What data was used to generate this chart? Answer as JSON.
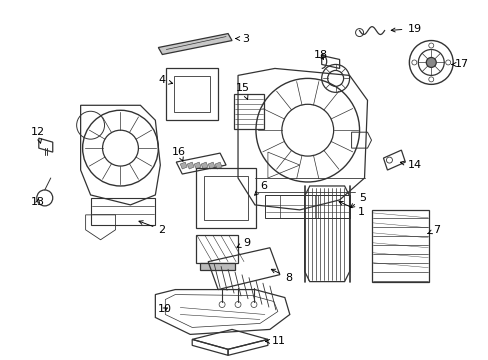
{
  "bg_color": "#ffffff",
  "line_color": "#333333",
  "fig_width": 4.89,
  "fig_height": 3.6,
  "dpi": 100,
  "font_size": 8,
  "lw": 0.9
}
